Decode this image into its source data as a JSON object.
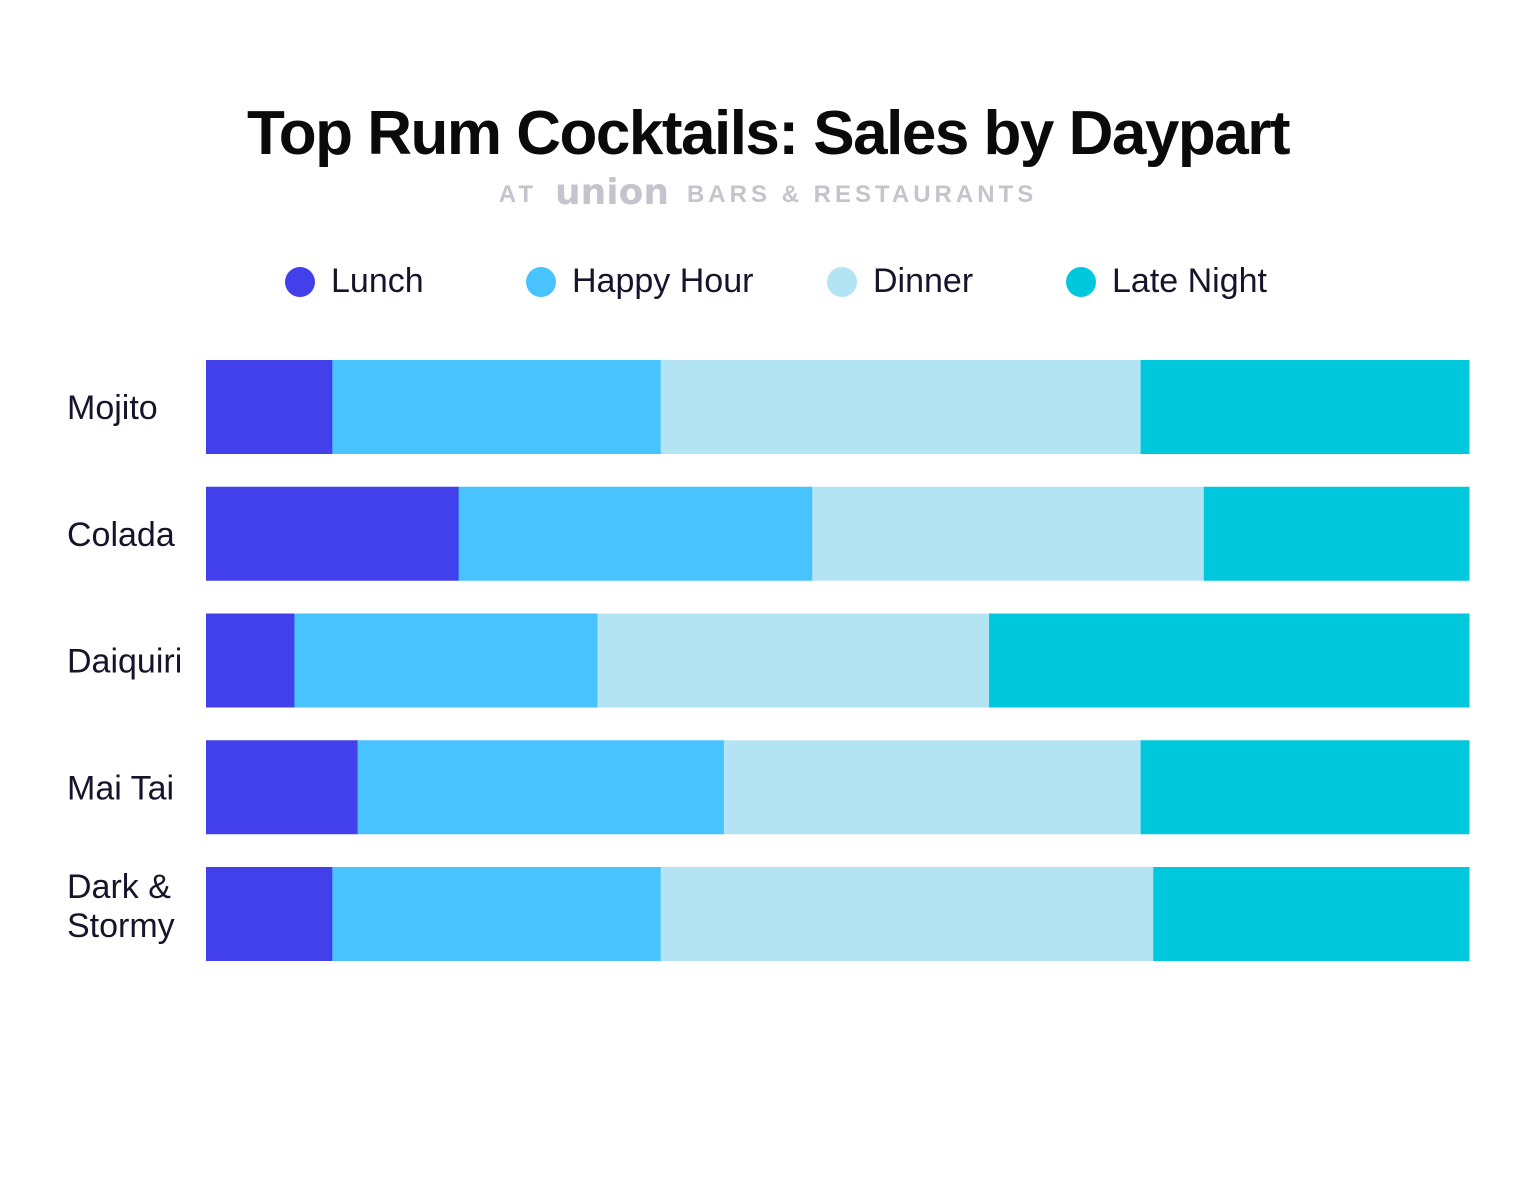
{
  "chart_data": {
    "type": "bar",
    "orientation": "horizontal",
    "stacked": "percent",
    "title": "Top Rum Cocktails: Sales by Daypart",
    "subtitle": {
      "prefix": "AT",
      "logo": "union",
      "suffix": "BARS & RESTAURANTS"
    },
    "categories": [
      "Mojito",
      "Colada",
      "Daiquiri",
      "Mai Tai",
      "Dark & Stormy"
    ],
    "series": [
      {
        "name": "Lunch",
        "color": "#4140ea",
        "values": [
          10,
          20,
          7,
          12,
          10
        ]
      },
      {
        "name": "Happy Hour",
        "color": "#48c3fd",
        "values": [
          26,
          28,
          24,
          29,
          26
        ]
      },
      {
        "name": "Dinner",
        "color": "#b3e4f3",
        "values": [
          38,
          31,
          31,
          33,
          39
        ]
      },
      {
        "name": "Late Night",
        "color": "#00c8dc",
        "values": [
          26,
          21,
          38,
          26,
          25
        ]
      }
    ],
    "xlim": [
      0,
      100
    ],
    "grid": false,
    "axes_visible": false,
    "legend_position": "top"
  }
}
